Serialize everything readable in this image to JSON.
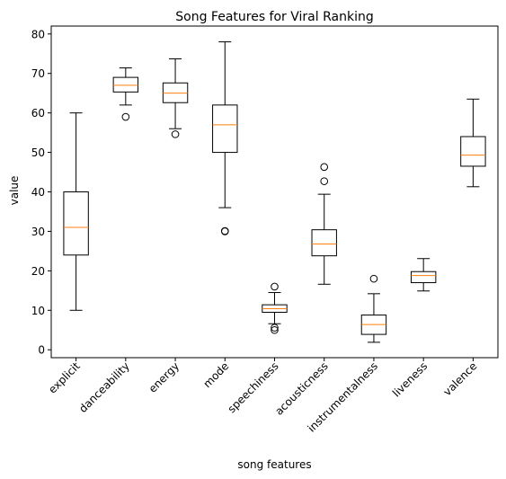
{
  "chart_data": {
    "type": "box",
    "title": "Song Features for Viral Ranking",
    "xlabel": "song features",
    "ylabel": "value",
    "ylim": [
      -2,
      82
    ],
    "yticks": [
      0,
      10,
      20,
      30,
      40,
      50,
      60,
      70,
      80
    ],
    "grid": false,
    "colors": {
      "box": "#000000",
      "median": "#ff7f0e",
      "background": "#ffffff"
    },
    "categories": [
      "explicit",
      "danceability",
      "energy",
      "mode",
      "speechiness",
      "acousticness",
      "instrumentalness",
      "liveness",
      "valence"
    ],
    "boxes": [
      {
        "category": "explicit",
        "whisker_low": 10,
        "q1": 24,
        "median": 31,
        "q3": 40,
        "whisker_high": 60,
        "outliers": []
      },
      {
        "category": "danceability",
        "whisker_low": 62,
        "q1": 65.3,
        "median": 67,
        "q3": 69,
        "whisker_high": 71.4,
        "outliers": [
          59
        ]
      },
      {
        "category": "energy",
        "whisker_low": 56,
        "q1": 62.6,
        "median": 65,
        "q3": 67.6,
        "whisker_high": 73.7,
        "outliers": [
          54.6
        ]
      },
      {
        "category": "mode",
        "whisker_low": 36,
        "q1": 50,
        "median": 57,
        "q3": 62,
        "whisker_high": 78,
        "outliers": [
          30,
          30.1
        ]
      },
      {
        "category": "speechiness",
        "whisker_low": 6.6,
        "q1": 9.5,
        "median": 10.4,
        "q3": 11.4,
        "whisker_high": 14.5,
        "outliers": [
          16,
          5.6,
          5.0
        ]
      },
      {
        "category": "acousticness",
        "whisker_low": 16.6,
        "q1": 23.8,
        "median": 26.8,
        "q3": 30.4,
        "whisker_high": 39.4,
        "outliers": [
          42.7,
          46.3
        ]
      },
      {
        "category": "instrumentalness",
        "whisker_low": 1.9,
        "q1": 3.9,
        "median": 6.4,
        "q3": 8.8,
        "whisker_high": 14.2,
        "outliers": [
          18
        ]
      },
      {
        "category": "liveness",
        "whisker_low": 14.9,
        "q1": 17,
        "median": 18.8,
        "q3": 19.8,
        "whisker_high": 23.1,
        "outliers": []
      },
      {
        "category": "valence",
        "whisker_low": 41.3,
        "q1": 46.5,
        "median": 49.3,
        "q3": 54,
        "whisker_high": 63.5,
        "outliers": []
      }
    ]
  }
}
